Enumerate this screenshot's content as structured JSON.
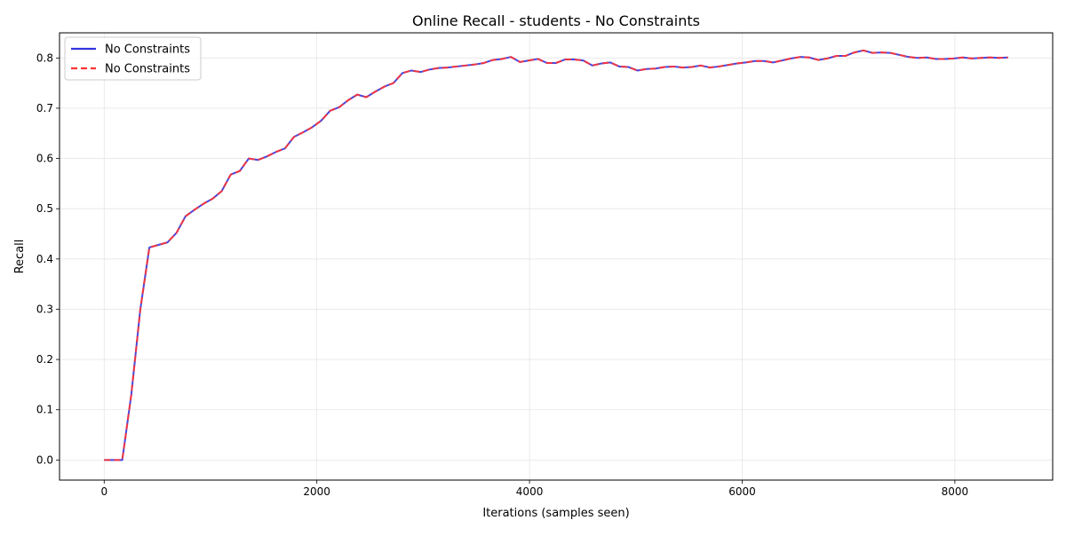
{
  "chart_data": {
    "type": "line",
    "title": "Online Recall - students - No Constraints",
    "xlabel": "Iterations (samples seen)",
    "ylabel": "Recall",
    "xlim": [
      -420,
      8920
    ],
    "ylim": [
      -0.04,
      0.85
    ],
    "xticks": [
      0,
      2000,
      4000,
      6000,
      8000
    ],
    "xtick_labels": [
      "0",
      "2000",
      "4000",
      "6000",
      "8000"
    ],
    "yticks": [
      0.0,
      0.1,
      0.2,
      0.3,
      0.4,
      0.5,
      0.6,
      0.7,
      0.8
    ],
    "ytick_labels": [
      "0.0",
      "0.1",
      "0.2",
      "0.3",
      "0.4",
      "0.5",
      "0.6",
      "0.7",
      "0.8"
    ],
    "grid": true,
    "legend_position": "top-left",
    "x": [
      0,
      85,
      170,
      255,
      340,
      425,
      510,
      595,
      680,
      765,
      850,
      935,
      1020,
      1105,
      1190,
      1275,
      1360,
      1445,
      1530,
      1615,
      1700,
      1785,
      1870,
      1955,
      2040,
      2125,
      2210,
      2295,
      2380,
      2465,
      2550,
      2635,
      2720,
      2805,
      2890,
      2975,
      3060,
      3145,
      3230,
      3315,
      3400,
      3485,
      3570,
      3655,
      3740,
      3825,
      3910,
      3995,
      4080,
      4165,
      4250,
      4335,
      4420,
      4505,
      4590,
      4675,
      4760,
      4845,
      4930,
      5015,
      5100,
      5185,
      5270,
      5355,
      5440,
      5525,
      5610,
      5695,
      5780,
      5865,
      5950,
      6035,
      6120,
      6205,
      6290,
      6375,
      6460,
      6545,
      6630,
      6715,
      6800,
      6885,
      6970,
      7055,
      7140,
      7225,
      7310,
      7395,
      7480,
      7565,
      7650,
      7735,
      7820,
      7905,
      7990,
      8075,
      8160,
      8245,
      8330,
      8415,
      8500
    ],
    "series": [
      {
        "name": "No Constraints",
        "color": "#3333dd",
        "style": "solid",
        "values": [
          0.0,
          0.0,
          0.0,
          0.13,
          0.3,
          0.423,
          0.428,
          0.433,
          0.452,
          0.485,
          0.498,
          0.51,
          0.52,
          0.535,
          0.568,
          0.575,
          0.6,
          0.597,
          0.604,
          0.613,
          0.62,
          0.643,
          0.652,
          0.662,
          0.675,
          0.695,
          0.702,
          0.716,
          0.727,
          0.722,
          0.733,
          0.743,
          0.75,
          0.77,
          0.775,
          0.772,
          0.777,
          0.78,
          0.781,
          0.783,
          0.785,
          0.787,
          0.79,
          0.796,
          0.798,
          0.802,
          0.792,
          0.795,
          0.798,
          0.79,
          0.79,
          0.797,
          0.797,
          0.795,
          0.785,
          0.789,
          0.791,
          0.783,
          0.782,
          0.775,
          0.778,
          0.779,
          0.782,
          0.783,
          0.781,
          0.782,
          0.785,
          0.781,
          0.783,
          0.786,
          0.789,
          0.791,
          0.794,
          0.794,
          0.791,
          0.795,
          0.799,
          0.802,
          0.801,
          0.796,
          0.799,
          0.804,
          0.804,
          0.811,
          0.815,
          0.81,
          0.811,
          0.81,
          0.806,
          0.802,
          0.8,
          0.801,
          0.798,
          0.798,
          0.799,
          0.801,
          0.799,
          0.8,
          0.801,
          0.8,
          0.801
        ]
      },
      {
        "name": "No Constraints",
        "color": "#ff3333",
        "style": "dashed",
        "values": [
          0.0,
          0.0,
          0.0,
          0.13,
          0.3,
          0.423,
          0.428,
          0.433,
          0.452,
          0.485,
          0.498,
          0.51,
          0.52,
          0.535,
          0.568,
          0.575,
          0.6,
          0.597,
          0.604,
          0.613,
          0.62,
          0.643,
          0.652,
          0.662,
          0.675,
          0.695,
          0.702,
          0.716,
          0.727,
          0.722,
          0.733,
          0.743,
          0.75,
          0.77,
          0.775,
          0.772,
          0.777,
          0.78,
          0.781,
          0.783,
          0.785,
          0.787,
          0.79,
          0.796,
          0.798,
          0.802,
          0.792,
          0.795,
          0.798,
          0.79,
          0.79,
          0.797,
          0.797,
          0.795,
          0.785,
          0.789,
          0.791,
          0.783,
          0.782,
          0.775,
          0.778,
          0.779,
          0.782,
          0.783,
          0.781,
          0.782,
          0.785,
          0.781,
          0.783,
          0.786,
          0.789,
          0.791,
          0.794,
          0.794,
          0.791,
          0.795,
          0.799,
          0.802,
          0.801,
          0.796,
          0.799,
          0.804,
          0.804,
          0.811,
          0.815,
          0.81,
          0.811,
          0.81,
          0.806,
          0.802,
          0.8,
          0.801,
          0.798,
          0.798,
          0.799,
          0.801,
          0.799,
          0.8,
          0.801,
          0.8,
          0.801
        ]
      }
    ]
  }
}
